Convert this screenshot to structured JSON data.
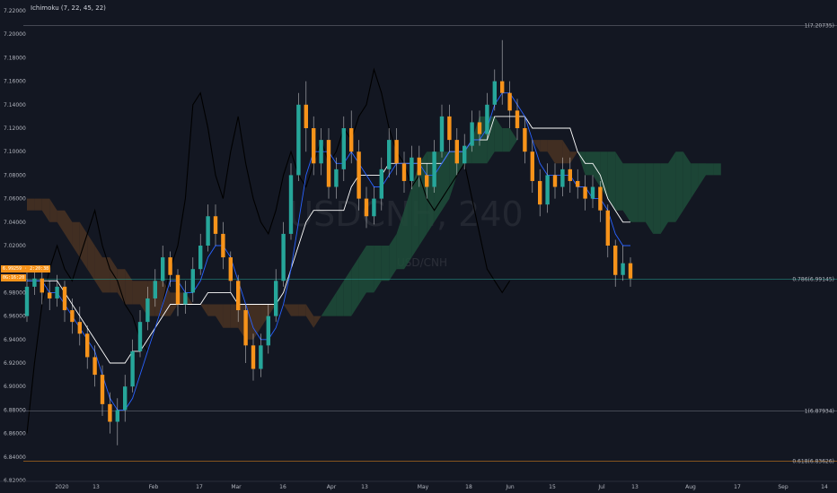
{
  "indicator": {
    "label": "Ichimoku (7, 22, 45, 22)"
  },
  "watermark": {
    "symbol": "USDCNH, 240",
    "name": "USD/CNH"
  },
  "price_tags": {
    "last": "6.99259 · 2:20:38",
    "countdown": "0G:16:20"
  },
  "colors": {
    "background": "#131722",
    "bull": "#26a69a",
    "bear": "#f7931a",
    "tenkan": "#2962ff",
    "kijun": "#ffffff",
    "chikou": "#000000",
    "cloud_bull": "#1e4d3a",
    "cloud_bear": "#4a3322",
    "fib": "#787b86",
    "fib_618": "#f7931a",
    "current_price": "#26a69a"
  },
  "chart_data": {
    "type": "candlestick",
    "ylim": [
      6.82,
      7.22
    ],
    "y_ticks": [
      "7.22000",
      "7.20000",
      "7.18000",
      "7.16000",
      "7.14000",
      "7.12000",
      "7.10000",
      "7.08000",
      "7.06000",
      "7.04000",
      "7.02000",
      "7.00000",
      "6.98000",
      "6.96000",
      "6.94000",
      "6.92000",
      "6.90000",
      "6.88000",
      "6.86000",
      "6.84000",
      "6.82000"
    ],
    "x_labels": [
      "2020",
      "13",
      "Feb",
      "17",
      "Mar",
      "16",
      "Apr",
      "13",
      "May",
      "18",
      "Jun",
      "15",
      "Jul",
      "13",
      "Aug",
      "17",
      "Sep",
      "14"
    ],
    "fib_levels": [
      {
        "label": "1(7.20735)",
        "value": 7.20735,
        "kind": "fib"
      },
      {
        "label": "0.786(6.99145)",
        "value": 6.99145,
        "kind": "current"
      },
      {
        "label": "1(6.87934)",
        "value": 6.87934,
        "kind": "fib"
      },
      {
        "label": "0.618(6.83626)",
        "value": 6.83626,
        "kind": "fib_618"
      }
    ],
    "candles": [
      [
        6.96,
        6.985,
        6.998,
        6.955,
        "g"
      ],
      [
        6.985,
        6.992,
        7.0,
        6.978,
        "g"
      ],
      [
        6.992,
        6.98,
        6.998,
        6.97,
        "r"
      ],
      [
        6.98,
        6.975,
        6.99,
        6.965,
        "r"
      ],
      [
        6.975,
        6.985,
        6.995,
        6.968,
        "g"
      ],
      [
        6.985,
        6.965,
        6.99,
        6.955,
        "r"
      ],
      [
        6.965,
        6.955,
        6.975,
        6.945,
        "r"
      ],
      [
        6.955,
        6.945,
        6.968,
        6.935,
        "r"
      ],
      [
        6.945,
        6.925,
        6.952,
        6.915,
        "r"
      ],
      [
        6.925,
        6.91,
        6.935,
        6.9,
        "r"
      ],
      [
        6.91,
        6.885,
        6.918,
        6.875,
        "r"
      ],
      [
        6.885,
        6.87,
        6.895,
        6.86,
        "r"
      ],
      [
        6.87,
        6.88,
        6.89,
        6.85,
        "g"
      ],
      [
        6.88,
        6.9,
        6.91,
        6.87,
        "g"
      ],
      [
        6.9,
        6.93,
        6.94,
        6.895,
        "g"
      ],
      [
        6.93,
        6.955,
        6.965,
        6.925,
        "g"
      ],
      [
        6.955,
        6.975,
        6.985,
        6.948,
        "g"
      ],
      [
        6.975,
        6.99,
        7.0,
        6.968,
        "g"
      ],
      [
        6.99,
        7.01,
        7.02,
        6.985,
        "g"
      ],
      [
        7.01,
        6.995,
        7.015,
        6.985,
        "r"
      ],
      [
        6.995,
        6.97,
        7.0,
        6.96,
        "r"
      ],
      [
        6.97,
        6.98,
        6.99,
        6.962,
        "g"
      ],
      [
        6.98,
        7.0,
        7.01,
        6.972,
        "g"
      ],
      [
        7.0,
        7.02,
        7.03,
        6.995,
        "g"
      ],
      [
        7.02,
        7.045,
        7.055,
        7.015,
        "g"
      ],
      [
        7.045,
        7.03,
        7.055,
        7.02,
        "r"
      ],
      [
        7.03,
        7.01,
        7.04,
        7.0,
        "r"
      ],
      [
        7.01,
        6.99,
        7.015,
        6.98,
        "r"
      ],
      [
        6.99,
        6.965,
        6.995,
        6.955,
        "r"
      ],
      [
        6.965,
        6.935,
        6.97,
        6.92,
        "r"
      ],
      [
        6.935,
        6.915,
        6.945,
        6.905,
        "r"
      ],
      [
        6.915,
        6.935,
        6.945,
        6.908,
        "g"
      ],
      [
        6.935,
        6.96,
        6.97,
        6.928,
        "g"
      ],
      [
        6.96,
        6.99,
        7.0,
        6.955,
        "g"
      ],
      [
        6.99,
        7.03,
        7.04,
        6.985,
        "g"
      ],
      [
        7.03,
        7.08,
        7.09,
        7.025,
        "g"
      ],
      [
        7.08,
        7.14,
        7.15,
        7.075,
        "g"
      ],
      [
        7.14,
        7.12,
        7.16,
        7.1,
        "r"
      ],
      [
        7.12,
        7.09,
        7.13,
        7.08,
        "r"
      ],
      [
        7.09,
        7.11,
        7.12,
        7.08,
        "g"
      ],
      [
        7.11,
        7.07,
        7.12,
        7.06,
        "r"
      ],
      [
        7.07,
        7.085,
        7.095,
        7.06,
        "g"
      ],
      [
        7.085,
        7.12,
        7.13,
        7.075,
        "g"
      ],
      [
        7.12,
        7.1,
        7.135,
        7.09,
        "r"
      ],
      [
        7.1,
        7.06,
        7.11,
        7.05,
        "r"
      ],
      [
        7.06,
        7.045,
        7.07,
        7.035,
        "r"
      ],
      [
        7.045,
        7.06,
        7.07,
        7.038,
        "g"
      ],
      [
        7.06,
        7.085,
        7.095,
        7.05,
        "g"
      ],
      [
        7.085,
        7.11,
        7.12,
        7.078,
        "g"
      ],
      [
        7.11,
        7.09,
        7.12,
        7.08,
        "r"
      ],
      [
        7.09,
        7.075,
        7.1,
        7.065,
        "r"
      ],
      [
        7.075,
        7.095,
        7.105,
        7.068,
        "g"
      ],
      [
        7.095,
        7.08,
        7.105,
        7.07,
        "r"
      ],
      [
        7.08,
        7.07,
        7.09,
        7.06,
        "r"
      ],
      [
        7.07,
        7.1,
        7.11,
        7.065,
        "g"
      ],
      [
        7.1,
        7.13,
        7.14,
        7.095,
        "g"
      ],
      [
        7.13,
        7.11,
        7.14,
        7.1,
        "r"
      ],
      [
        7.11,
        7.09,
        7.12,
        7.08,
        "r"
      ],
      [
        7.09,
        7.105,
        7.115,
        7.085,
        "g"
      ],
      [
        7.105,
        7.125,
        7.135,
        7.1,
        "g"
      ],
      [
        7.125,
        7.115,
        7.135,
        7.105,
        "r"
      ],
      [
        7.115,
        7.14,
        7.15,
        7.11,
        "g"
      ],
      [
        7.14,
        7.16,
        7.17,
        7.135,
        "g"
      ],
      [
        7.16,
        7.15,
        7.195,
        7.14,
        "r"
      ],
      [
        7.15,
        7.135,
        7.16,
        7.12,
        "r"
      ],
      [
        7.135,
        7.12,
        7.145,
        7.11,
        "r"
      ],
      [
        7.12,
        7.1,
        7.13,
        7.09,
        "r"
      ],
      [
        7.1,
        7.075,
        7.11,
        7.065,
        "r"
      ],
      [
        7.075,
        7.055,
        7.085,
        7.045,
        "r"
      ],
      [
        7.055,
        7.08,
        7.09,
        7.048,
        "g"
      ],
      [
        7.08,
        7.07,
        7.09,
        7.06,
        "r"
      ],
      [
        7.07,
        7.085,
        7.095,
        7.062,
        "g"
      ],
      [
        7.085,
        7.075,
        7.095,
        7.065,
        "r"
      ],
      [
        7.075,
        7.07,
        7.085,
        7.06,
        "r"
      ],
      [
        7.07,
        7.06,
        7.08,
        7.05,
        "r"
      ],
      [
        7.06,
        7.07,
        7.08,
        7.052,
        "g"
      ],
      [
        7.07,
        7.05,
        7.075,
        7.04,
        "r"
      ],
      [
        7.05,
        7.02,
        7.055,
        7.01,
        "r"
      ],
      [
        7.02,
        6.995,
        7.025,
        6.985,
        "r"
      ],
      [
        6.995,
        7.005,
        7.02,
        6.99,
        "g"
      ],
      [
        7.005,
        6.992,
        7.01,
        6.985,
        "r"
      ]
    ],
    "tenkan": [
      6.99,
      6.99,
      6.99,
      6.98,
      6.98,
      6.97,
      6.96,
      6.95,
      6.94,
      6.93,
      6.91,
      6.89,
      6.88,
      6.88,
      6.89,
      6.91,
      6.93,
      6.95,
      6.97,
      6.99,
      6.99,
      6.98,
      6.98,
      6.99,
      7.01,
      7.02,
      7.02,
      7.01,
      6.99,
      6.97,
      6.95,
      6.94,
      6.94,
      6.95,
      6.97,
      7.0,
      7.04,
      7.08,
      7.1,
      7.1,
      7.1,
      7.09,
      7.09,
      7.1,
      7.09,
      7.08,
      7.07,
      7.07,
      7.08,
      7.09,
      7.09,
      7.09,
      7.09,
      7.08,
      7.08,
      7.09,
      7.1,
      7.1,
      7.1,
      7.11,
      7.11,
      7.12,
      7.14,
      7.15,
      7.15,
      7.14,
      7.13,
      7.11,
      7.09,
      7.08,
      7.08,
      7.08,
      7.08,
      7.07,
      7.07,
      7.06,
      7.06,
      7.05,
      7.03,
      7.02,
      7.02
    ],
    "kijun": [
      6.99,
      6.99,
      6.99,
      6.99,
      6.99,
      6.98,
      6.97,
      6.96,
      6.95,
      6.94,
      6.93,
      6.92,
      6.92,
      6.92,
      6.93,
      6.93,
      6.94,
      6.95,
      6.96,
      6.97,
      6.97,
      6.97,
      6.97,
      6.97,
      6.98,
      6.98,
      6.98,
      6.98,
      6.97,
      6.97,
      6.97,
      6.97,
      6.97,
      6.97,
      6.98,
      7.0,
      7.02,
      7.04,
      7.05,
      7.05,
      7.05,
      7.05,
      7.05,
      7.07,
      7.08,
      7.08,
      7.08,
      7.08,
      7.09,
      7.09,
      7.09,
      7.09,
      7.09,
      7.09,
      7.09,
      7.09,
      7.1,
      7.1,
      7.1,
      7.11,
      7.11,
      7.11,
      7.13,
      7.13,
      7.13,
      7.13,
      7.13,
      7.12,
      7.12,
      7.12,
      7.12,
      7.12,
      7.12,
      7.1,
      7.09,
      7.09,
      7.08,
      7.06,
      7.05,
      7.04,
      7.04
    ],
    "chikou": [
      6.86,
      6.92,
      6.97,
      7.0,
      7.02,
      7.0,
      6.99,
      7.01,
      7.03,
      7.05,
      7.02,
      7.0,
      6.99,
      6.97,
      6.96,
      6.94,
      6.93,
      6.95,
      6.97,
      7.0,
      7.02,
      7.06,
      7.14,
      7.15,
      7.12,
      7.08,
      7.06,
      7.1,
      7.13,
      7.09,
      7.06,
      7.04,
      7.03,
      7.05,
      7.08,
      7.1,
      7.08,
      7.07,
      7.09,
      7.11,
      7.09,
      7.1,
      7.12,
      7.11,
      7.13,
      7.14,
      7.17,
      7.15,
      7.12,
      7.1,
      7.09,
      7.07,
      7.08,
      7.06,
      7.05,
      7.06,
      7.07,
      7.08,
      7.09,
      7.06,
      7.03,
      7.0,
      6.99,
      6.98,
      6.99
    ],
    "cloud_a": [
      7.05,
      7.05,
      7.05,
      7.04,
      7.04,
      7.03,
      7.02,
      7.01,
      7.0,
      6.99,
      6.98,
      6.98,
      6.98,
      6.97,
      6.97,
      6.97,
      6.96,
      6.96,
      6.96,
      6.96,
      6.97,
      6.97,
      6.97,
      6.97,
      6.96,
      6.96,
      6.95,
      6.95,
      6.95,
      6.94,
      6.94,
      6.95,
      6.96,
      6.97,
      6.97,
      6.96,
      6.96,
      6.96,
      6.95,
      6.96,
      6.97,
      6.98,
      6.99,
      7.0,
      7.01,
      7.02,
      7.02,
      7.02,
      7.02,
      7.03,
      7.05,
      7.07,
      7.09,
      7.1,
      7.1,
      7.1,
      7.1,
      7.1,
      7.1,
      7.11,
      7.13,
      7.13,
      7.13,
      7.12,
      7.12,
      7.11,
      7.11,
      7.11,
      7.1,
      7.1,
      7.09,
      7.09,
      7.09,
      7.1,
      7.1,
      7.1,
      7.1,
      7.1,
      7.1,
      7.09,
      7.09,
      7.09,
      7.09,
      7.09,
      7.09,
      7.09,
      7.1,
      7.1,
      7.09,
      7.09,
      7.09,
      7.09,
      7.09
    ],
    "cloud_b": [
      7.06,
      7.06,
      7.06,
      7.06,
      7.05,
      7.05,
      7.04,
      7.04,
      7.03,
      7.02,
      7.01,
      7.01,
      7.0,
      7.0,
      6.99,
      6.99,
      6.99,
      6.99,
      6.99,
      6.98,
      6.98,
      6.98,
      6.97,
      6.97,
      6.97,
      6.97,
      6.97,
      6.97,
      6.97,
      6.97,
      6.97,
      6.97,
      6.97,
      6.97,
      6.97,
      6.97,
      6.97,
      6.97,
      6.96,
      6.96,
      6.96,
      6.96,
      6.96,
      6.96,
      6.97,
      6.98,
      6.98,
      6.99,
      6.99,
      7.0,
      7.0,
      7.01,
      7.02,
      7.03,
      7.04,
      7.05,
      7.06,
      7.08,
      7.09,
      7.09,
      7.09,
      7.09,
      7.1,
      7.1,
      7.1,
      7.11,
      7.11,
      7.11,
      7.11,
      7.11,
      7.11,
      7.11,
      7.1,
      7.1,
      7.08,
      7.08,
      7.07,
      7.06,
      7.05,
      7.05,
      7.04,
      7.04,
      7.04,
      7.03,
      7.03,
      7.04,
      7.04,
      7.05,
      7.06,
      7.07,
      7.08,
      7.08,
      7.08
    ]
  }
}
